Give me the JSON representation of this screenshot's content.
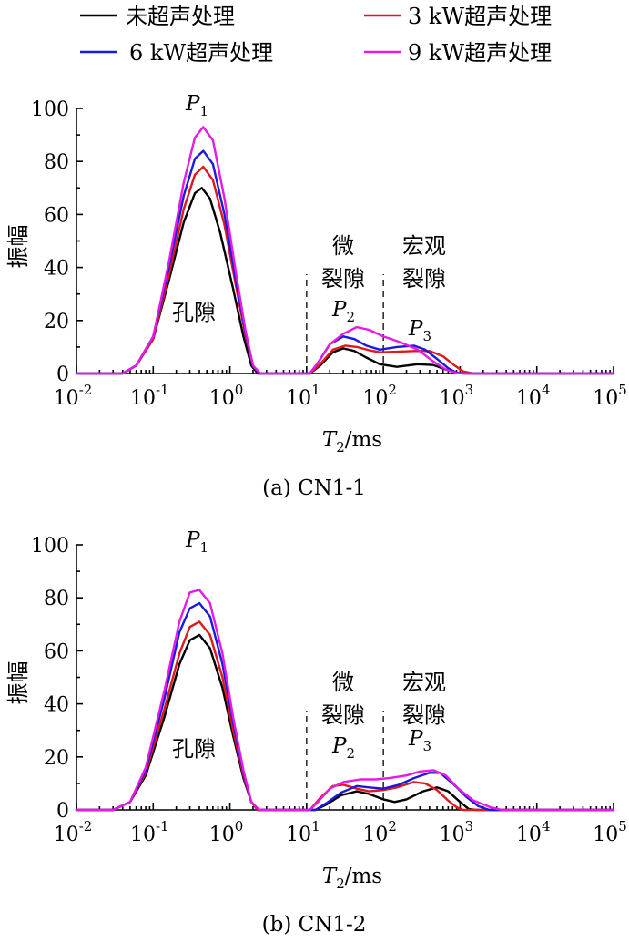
{
  "legend": {
    "items": [
      {
        "label": "未超声处理",
        "color": "#000000"
      },
      {
        "label": "3 kW超声处理",
        "color": "#e0181b"
      },
      {
        "label": "6 kW超声处理",
        "color": "#1a1adc"
      },
      {
        "label": "9 kW超声处理",
        "color": "#e619e6"
      }
    ]
  },
  "chart_data": [
    {
      "type": "line",
      "caption": "(a)  CN1-1",
      "xlabel_main": "T",
      "xlabel_sub": "2",
      "xlabel_unit": "/ms",
      "ylabel": "振幅",
      "xscale": "log",
      "xlim": [
        0.01,
        100000
      ],
      "ylim": [
        0,
        100
      ],
      "yticks": [
        "0",
        "20",
        "40",
        "60",
        "80",
        "100"
      ],
      "xticks": [
        {
          "base": "10",
          "exp": "-2"
        },
        {
          "base": "10",
          "exp": "-1"
        },
        {
          "base": "10",
          "exp": "0"
        },
        {
          "base": "10",
          "exp": "1"
        },
        {
          "base": "10",
          "exp": "2"
        },
        {
          "base": "10",
          "exp": "3"
        },
        {
          "base": "10",
          "exp": "4"
        },
        {
          "base": "10",
          "exp": "5"
        }
      ],
      "annotations": {
        "pore": "孔隙",
        "micro_line1": "微",
        "micro_line2": "裂隙",
        "macro_line1": "宏观",
        "macro_line2": "裂隙",
        "p1": {
          "main": "P",
          "sub": "1"
        },
        "p2": {
          "main": "P",
          "sub": "2"
        },
        "p3": {
          "main": "P",
          "sub": "3"
        }
      },
      "dashed_lines_x": [
        10,
        100
      ],
      "series": [
        {
          "name": "未超声处理",
          "color": "#000000",
          "points": [
            [
              0.01,
              0
            ],
            [
              0.04,
              0
            ],
            [
              0.06,
              3
            ],
            [
              0.1,
              13
            ],
            [
              0.16,
              35
            ],
            [
              0.25,
              57
            ],
            [
              0.35,
              68
            ],
            [
              0.43,
              70
            ],
            [
              0.55,
              66
            ],
            [
              0.75,
              53
            ],
            [
              1.1,
              32
            ],
            [
              1.5,
              14
            ],
            [
              1.9,
              3
            ],
            [
              2.3,
              0
            ],
            [
              11,
              0
            ],
            [
              15,
              3
            ],
            [
              22,
              8
            ],
            [
              30,
              9.5
            ],
            [
              42,
              8.5
            ],
            [
              60,
              6
            ],
            [
              90,
              3.5
            ],
            [
              150,
              2.5
            ],
            [
              280,
              3.5
            ],
            [
              450,
              3.2
            ],
            [
              650,
              1.5
            ],
            [
              900,
              0.3
            ],
            [
              1200,
              0
            ],
            [
              100000,
              0
            ]
          ]
        },
        {
          "name": "3 kW超声处理",
          "color": "#e0181b",
          "points": [
            [
              0.01,
              0
            ],
            [
              0.04,
              0
            ],
            [
              0.06,
              3
            ],
            [
              0.1,
              13
            ],
            [
              0.16,
              37
            ],
            [
              0.25,
              62
            ],
            [
              0.35,
              75
            ],
            [
              0.45,
              78
            ],
            [
              0.6,
              73
            ],
            [
              0.85,
              56
            ],
            [
              1.2,
              33
            ],
            [
              1.6,
              14
            ],
            [
              2.0,
              3
            ],
            [
              2.4,
              0
            ],
            [
              11,
              0
            ],
            [
              15,
              3.5
            ],
            [
              22,
              9
            ],
            [
              32,
              10.5
            ],
            [
              45,
              10
            ],
            [
              65,
              8.8
            ],
            [
              90,
              8
            ],
            [
              150,
              8.2
            ],
            [
              250,
              8.5
            ],
            [
              400,
              8.5
            ],
            [
              600,
              6.5
            ],
            [
              850,
              3
            ],
            [
              1100,
              0.8
            ],
            [
              1500,
              0
            ],
            [
              100000,
              0
            ]
          ]
        },
        {
          "name": "6 kW超声处理",
          "color": "#1a1adc",
          "points": [
            [
              0.01,
              0
            ],
            [
              0.04,
              0
            ],
            [
              0.06,
              3
            ],
            [
              0.1,
              14
            ],
            [
              0.16,
              40
            ],
            [
              0.25,
              67
            ],
            [
              0.35,
              81
            ],
            [
              0.45,
              84
            ],
            [
              0.6,
              79
            ],
            [
              0.85,
              60
            ],
            [
              1.2,
              35
            ],
            [
              1.6,
              15
            ],
            [
              2.0,
              3
            ],
            [
              2.4,
              0
            ],
            [
              11,
              0
            ],
            [
              14,
              4
            ],
            [
              20,
              11
            ],
            [
              30,
              14
            ],
            [
              42,
              13
            ],
            [
              60,
              10.5
            ],
            [
              90,
              9
            ],
            [
              150,
              10
            ],
            [
              250,
              10.5
            ],
            [
              350,
              9
            ],
            [
              500,
              5.5
            ],
            [
              700,
              2
            ],
            [
              900,
              0.3
            ],
            [
              1100,
              0
            ],
            [
              100000,
              0
            ]
          ]
        },
        {
          "name": "9 kW超声处理",
          "color": "#e619e6",
          "points": [
            [
              0.01,
              0
            ],
            [
              0.04,
              0
            ],
            [
              0.06,
              3
            ],
            [
              0.1,
              14
            ],
            [
              0.16,
              42
            ],
            [
              0.25,
              72
            ],
            [
              0.35,
              89
            ],
            [
              0.45,
              93
            ],
            [
              0.6,
              88
            ],
            [
              0.85,
              66
            ],
            [
              1.2,
              38
            ],
            [
              1.6,
              16
            ],
            [
              2.0,
              3
            ],
            [
              2.5,
              0
            ],
            [
              11,
              0
            ],
            [
              14,
              4
            ],
            [
              20,
              11
            ],
            [
              30,
              15
            ],
            [
              45,
              17.5
            ],
            [
              65,
              16.5
            ],
            [
              100,
              14
            ],
            [
              160,
              12
            ],
            [
              280,
              9
            ],
            [
              450,
              4.5
            ],
            [
              650,
              1.5
            ],
            [
              900,
              0.2
            ],
            [
              1100,
              0
            ],
            [
              100000,
              0
            ]
          ]
        }
      ]
    },
    {
      "type": "line",
      "caption": "(b)  CN1-2",
      "xlabel_main": "T",
      "xlabel_sub": "2",
      "xlabel_unit": "/ms",
      "ylabel": "振幅",
      "xscale": "log",
      "xlim": [
        0.01,
        100000
      ],
      "ylim": [
        0,
        100
      ],
      "yticks": [
        "0",
        "20",
        "40",
        "60",
        "80",
        "100"
      ],
      "xticks": [
        {
          "base": "10",
          "exp": "-2"
        },
        {
          "base": "10",
          "exp": "-1"
        },
        {
          "base": "10",
          "exp": "0"
        },
        {
          "base": "10",
          "exp": "1"
        },
        {
          "base": "10",
          "exp": "2"
        },
        {
          "base": "10",
          "exp": "3"
        },
        {
          "base": "10",
          "exp": "4"
        },
        {
          "base": "10",
          "exp": "5"
        }
      ],
      "annotations": {
        "pore": "孔隙",
        "micro_line1": "微",
        "micro_line2": "裂隙",
        "macro_line1": "宏观",
        "macro_line2": "裂隙",
        "p1": {
          "main": "P",
          "sub": "1"
        },
        "p2": {
          "main": "P",
          "sub": "2"
        },
        "p3": {
          "main": "P",
          "sub": "3"
        }
      },
      "dashed_lines_x": [
        10,
        100
      ],
      "series": [
        {
          "name": "未超声处理",
          "color": "#000000",
          "points": [
            [
              0.01,
              0
            ],
            [
              0.03,
              0
            ],
            [
              0.05,
              3
            ],
            [
              0.08,
              13
            ],
            [
              0.14,
              35
            ],
            [
              0.22,
              55
            ],
            [
              0.3,
              64
            ],
            [
              0.4,
              66
            ],
            [
              0.55,
              61
            ],
            [
              0.8,
              46
            ],
            [
              1.1,
              28
            ],
            [
              1.5,
              12
            ],
            [
              1.9,
              3
            ],
            [
              2.3,
              0
            ],
            [
              13,
              0
            ],
            [
              18,
              2
            ],
            [
              28,
              5.5
            ],
            [
              45,
              7
            ],
            [
              65,
              6
            ],
            [
              100,
              4
            ],
            [
              140,
              3
            ],
            [
              200,
              4
            ],
            [
              330,
              7
            ],
            [
              500,
              8.5
            ],
            [
              700,
              7
            ],
            [
              1000,
              3
            ],
            [
              1300,
              0.3
            ],
            [
              1600,
              0
            ],
            [
              100000,
              0
            ]
          ]
        },
        {
          "name": "3 kW超声处理",
          "color": "#e0181b",
          "points": [
            [
              0.01,
              0
            ],
            [
              0.03,
              0
            ],
            [
              0.05,
              3
            ],
            [
              0.08,
              14
            ],
            [
              0.14,
              38
            ],
            [
              0.22,
              59
            ],
            [
              0.3,
              69
            ],
            [
              0.4,
              71
            ],
            [
              0.55,
              66
            ],
            [
              0.8,
              50
            ],
            [
              1.1,
              30
            ],
            [
              1.5,
              13
            ],
            [
              1.9,
              3
            ],
            [
              2.3,
              0
            ],
            [
              11,
              0
            ],
            [
              15,
              4.5
            ],
            [
              22,
              9
            ],
            [
              30,
              9.5
            ],
            [
              45,
              8
            ],
            [
              65,
              7
            ],
            [
              100,
              7.5
            ],
            [
              150,
              8.5
            ],
            [
              250,
              10.5
            ],
            [
              350,
              10
            ],
            [
              500,
              7.5
            ],
            [
              700,
              3.5
            ],
            [
              900,
              1
            ],
            [
              1100,
              0
            ],
            [
              100000,
              0
            ]
          ]
        },
        {
          "name": "6 kW超声处理",
          "color": "#1a1adc",
          "points": [
            [
              0.01,
              0
            ],
            [
              0.03,
              0
            ],
            [
              0.05,
              3
            ],
            [
              0.08,
              15
            ],
            [
              0.14,
              42
            ],
            [
              0.22,
              67
            ],
            [
              0.3,
              76
            ],
            [
              0.4,
              78
            ],
            [
              0.55,
              73
            ],
            [
              0.8,
              55
            ],
            [
              1.1,
              33
            ],
            [
              1.5,
              14
            ],
            [
              1.9,
              3
            ],
            [
              2.4,
              0
            ],
            [
              13,
              0
            ],
            [
              18,
              2.5
            ],
            [
              28,
              6.5
            ],
            [
              45,
              9
            ],
            [
              65,
              8.5
            ],
            [
              100,
              8
            ],
            [
              160,
              9.5
            ],
            [
              250,
              12
            ],
            [
              400,
              14
            ],
            [
              550,
              14
            ],
            [
              800,
              10
            ],
            [
              1200,
              5
            ],
            [
              1700,
              1.5
            ],
            [
              2400,
              0
            ],
            [
              100000,
              0
            ]
          ]
        },
        {
          "name": "9 kW超声处理",
          "color": "#e619e6",
          "points": [
            [
              0.01,
              0
            ],
            [
              0.03,
              0
            ],
            [
              0.05,
              3
            ],
            [
              0.08,
              16
            ],
            [
              0.14,
              45
            ],
            [
              0.22,
              71
            ],
            [
              0.3,
              82
            ],
            [
              0.4,
              83
            ],
            [
              0.55,
              78
            ],
            [
              0.8,
              59
            ],
            [
              1.1,
              35
            ],
            [
              1.5,
              15
            ],
            [
              1.9,
              3
            ],
            [
              2.4,
              0
            ],
            [
              11,
              0
            ],
            [
              14,
              3
            ],
            [
              20,
              8
            ],
            [
              30,
              10.5
            ],
            [
              50,
              11.5
            ],
            [
              80,
              11.5
            ],
            [
              120,
              12
            ],
            [
              200,
              13
            ],
            [
              300,
              14.5
            ],
            [
              450,
              15
            ],
            [
              650,
              13
            ],
            [
              950,
              8
            ],
            [
              1500,
              3.5
            ],
            [
              2500,
              1
            ],
            [
              3500,
              0
            ],
            [
              100000,
              0
            ]
          ]
        }
      ]
    }
  ]
}
